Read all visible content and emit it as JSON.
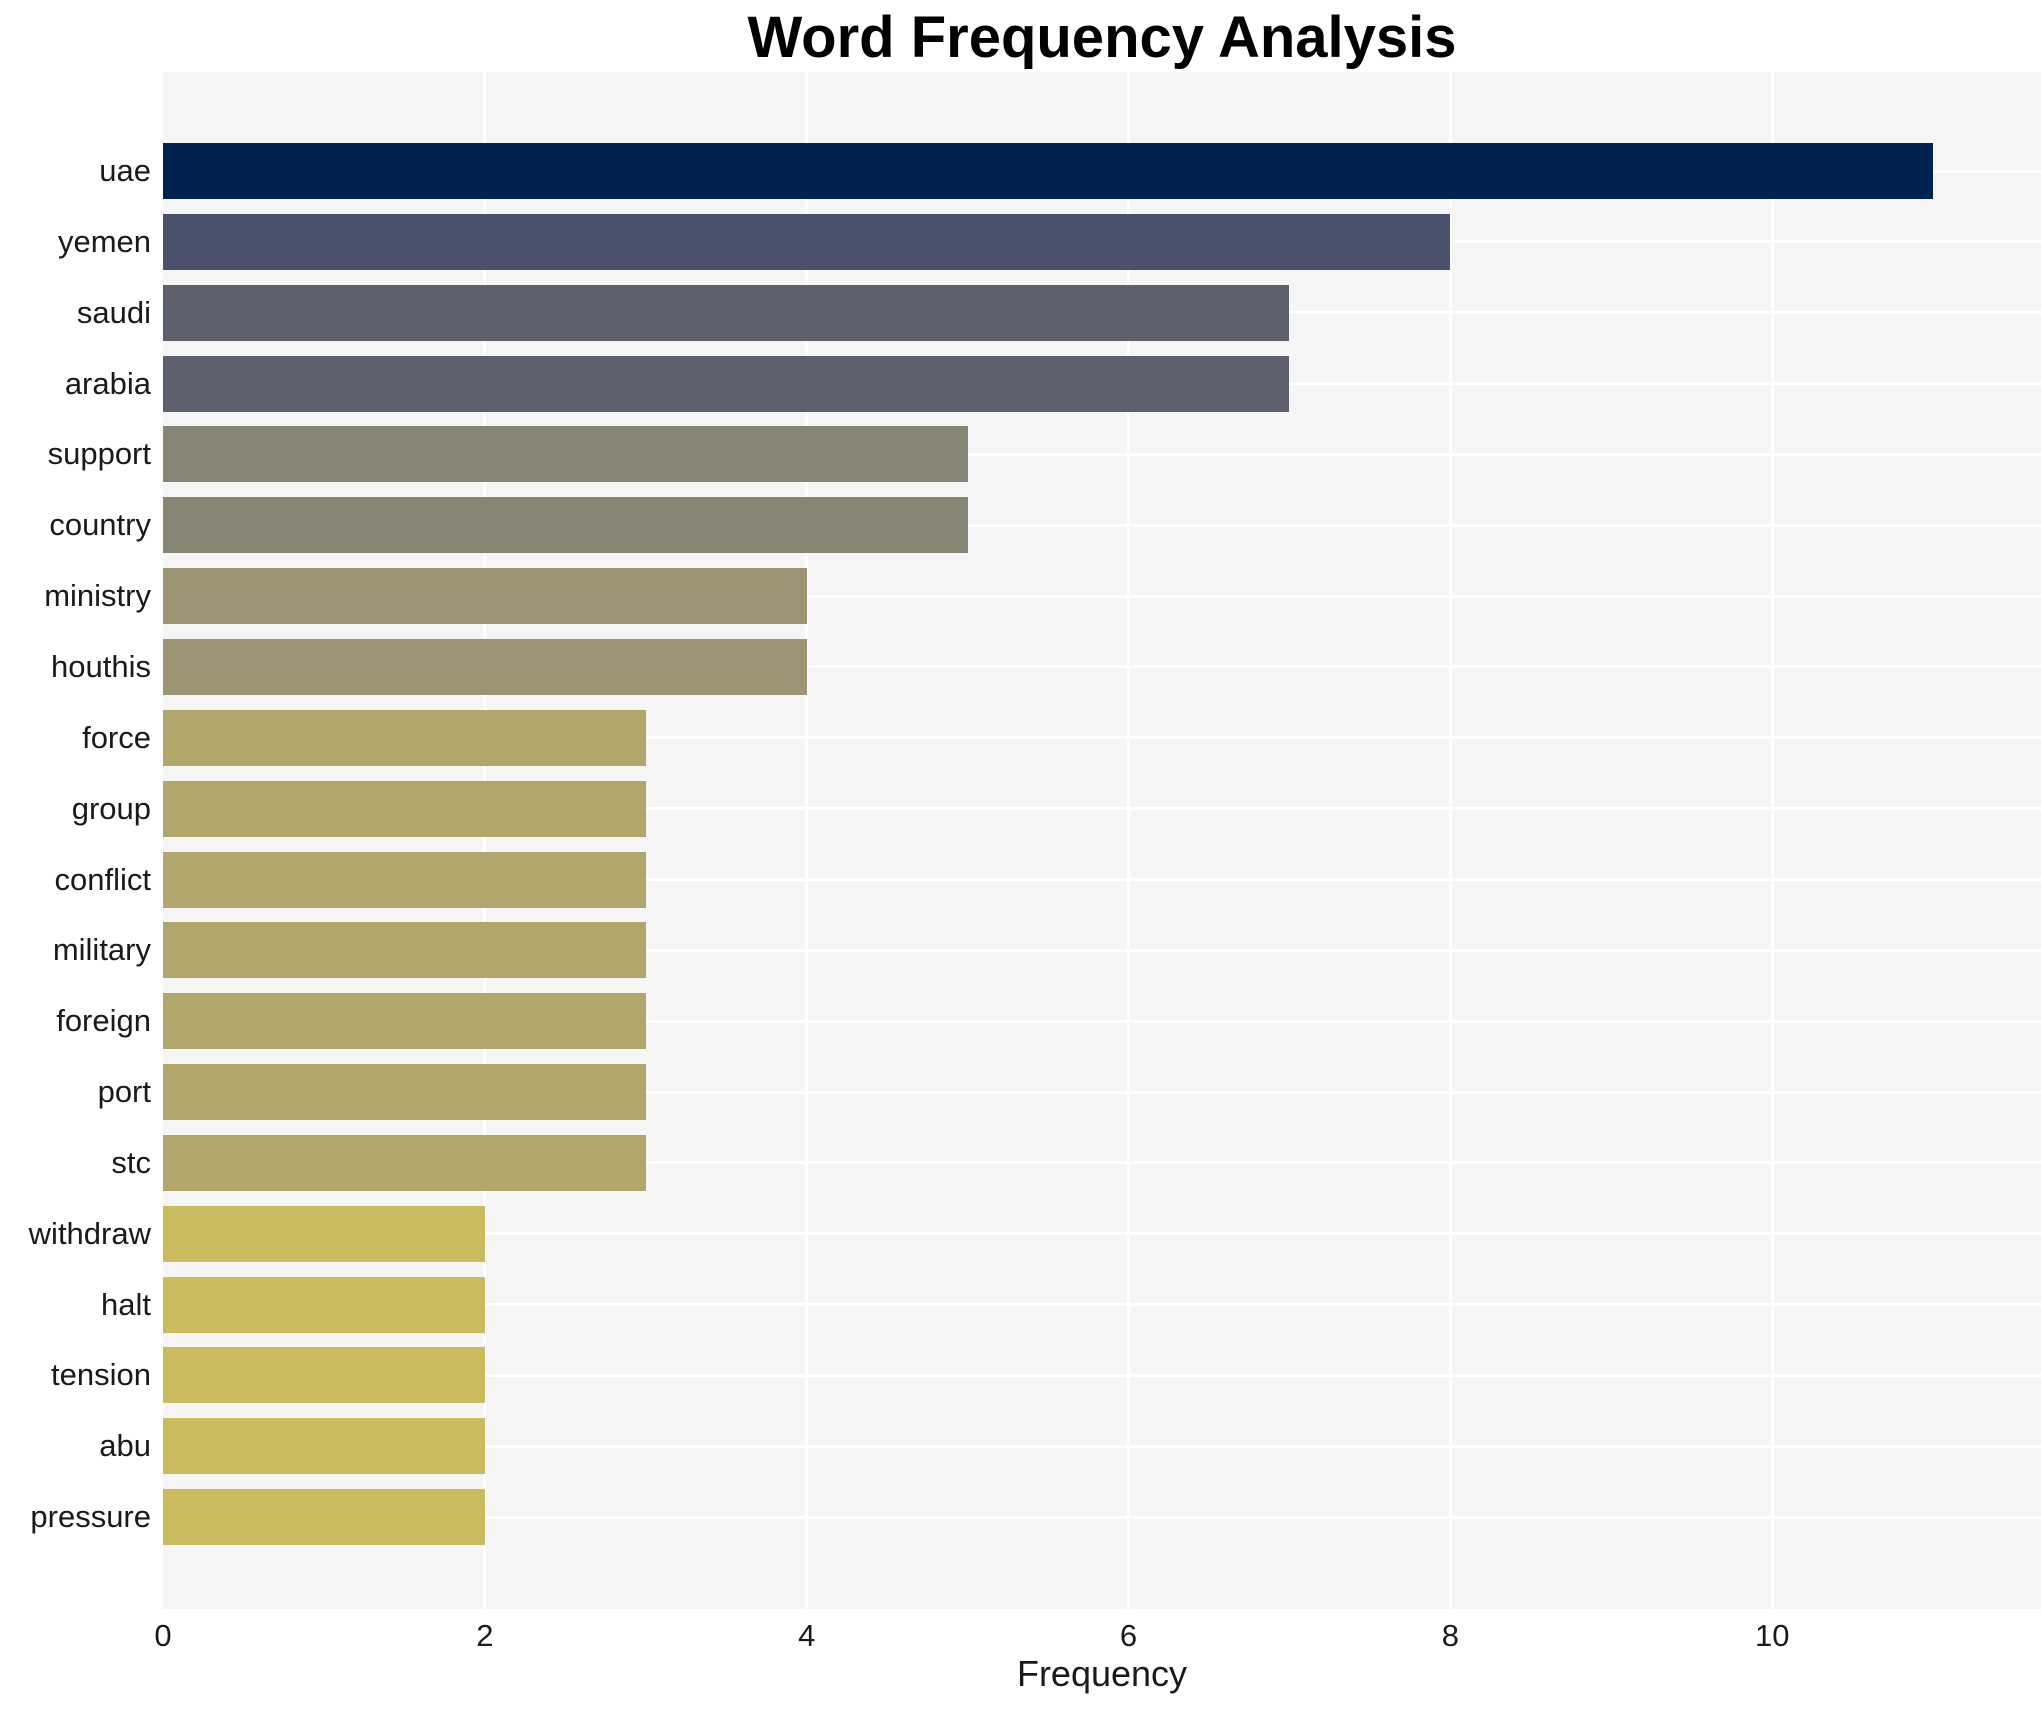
{
  "chart_data": {
    "type": "bar",
    "orientation": "horizontal",
    "title": "Word Frequency Analysis",
    "xlabel": "Frequency",
    "ylabel": "",
    "categories": [
      "uae",
      "yemen",
      "saudi",
      "arabia",
      "support",
      "country",
      "ministry",
      "houthis",
      "force",
      "group",
      "conflict",
      "military",
      "foreign",
      "port",
      "stc",
      "withdraw",
      "halt",
      "tension",
      "abu",
      "pressure"
    ],
    "values": [
      11,
      8,
      7,
      7,
      5,
      5,
      4,
      4,
      3,
      3,
      3,
      3,
      3,
      3,
      3,
      2,
      2,
      2,
      2,
      2
    ],
    "bar_colors": [
      "#00224e",
      "#49516c",
      "#5e616d",
      "#5e616d",
      "#868472",
      "#868472",
      "#9c9472",
      "#9c9472",
      "#b1a76b",
      "#b1a76b",
      "#b1a76b",
      "#b1a76b",
      "#b1a76b",
      "#b1a76b",
      "#b1a76b",
      "#cbbb5f",
      "#cbbb5f",
      "#cbbb5f",
      "#cbbb5f",
      "#cbbb5f"
    ],
    "xticks": [
      0,
      2,
      4,
      6,
      8,
      10
    ],
    "xlim": [
      0,
      11.67
    ],
    "grid": true,
    "legend": false,
    "plot_background": "#f5f5f5",
    "grid_color": "#ffffff",
    "text_color": "#1a1a1a",
    "title_color": "#000000"
  }
}
